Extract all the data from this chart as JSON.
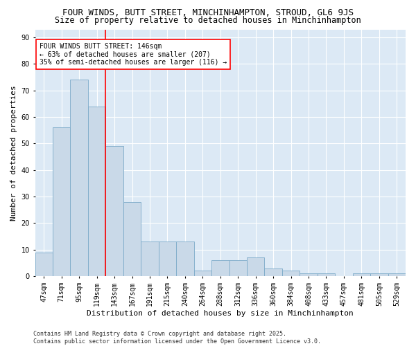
{
  "title": "FOUR WINDS, BUTT STREET, MINCHINHAMPTON, STROUD, GL6 9JS",
  "subtitle": "Size of property relative to detached houses in Minchinhampton",
  "xlabel": "Distribution of detached houses by size in Minchinhampton",
  "ylabel": "Number of detached properties",
  "bar_values": [
    9,
    56,
    74,
    64,
    49,
    28,
    13,
    13,
    13,
    2,
    6,
    6,
    7,
    3,
    2,
    1,
    1,
    0,
    1,
    1,
    1
  ],
  "bar_labels": [
    "47sqm",
    "71sqm",
    "95sqm",
    "119sqm",
    "143sqm",
    "167sqm",
    "191sqm",
    "215sqm",
    "240sqm",
    "264sqm",
    "288sqm",
    "312sqm",
    "336sqm",
    "360sqm",
    "384sqm",
    "408sqm",
    "433sqm",
    "457sqm",
    "481sqm",
    "505sqm",
    "529sqm"
  ],
  "bar_color": "#c9d9e8",
  "bar_edge_color": "#7baac8",
  "property_line_x": 4,
  "property_line_color": "red",
  "annotation_text": "FOUR WINDS BUTT STREET: 146sqm\n← 63% of detached houses are smaller (207)\n35% of semi-detached houses are larger (116) →",
  "annotation_box_color": "white",
  "annotation_box_edge": "red",
  "ylim": [
    0,
    93
  ],
  "yticks": [
    0,
    10,
    20,
    30,
    40,
    50,
    60,
    70,
    80,
    90
  ],
  "background_color": "#dce9f5",
  "footer_text": "Contains HM Land Registry data © Crown copyright and database right 2025.\nContains public sector information licensed under the Open Government Licence v3.0.",
  "title_fontsize": 9,
  "subtitle_fontsize": 8.5,
  "axis_label_fontsize": 8,
  "tick_fontsize": 7,
  "annotation_fontsize": 7
}
